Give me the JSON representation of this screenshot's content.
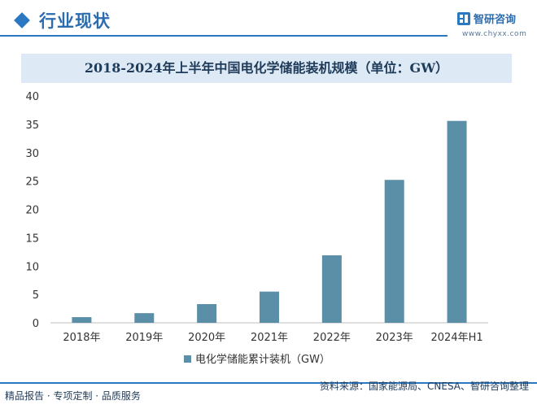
{
  "header": {
    "section_title": "行业现状",
    "brand_name": "智研咨询",
    "brand_url": "www.chyxx.com"
  },
  "footer": {
    "left_text": "精品报告 · 专项定制 · 品质服务",
    "source_text": "资料来源：国家能源局、CNESA、智研咨询整理"
  },
  "colors": {
    "bar": "#5b8fa8",
    "accent": "#2b78c2",
    "title_bg": "#dde9f5"
  },
  "chart_data": {
    "type": "bar",
    "title": "2018-2024年上半年中国电化学储能装机规模（单位：GW）",
    "categories": [
      "2018年",
      "2019年",
      "2020年",
      "2021年",
      "2022年",
      "2023年",
      "2024年H1"
    ],
    "series": [
      {
        "name": "电化学储能累计装机（GW）",
        "values": [
          1.0,
          1.7,
          3.3,
          5.5,
          11.9,
          25.2,
          35.6
        ]
      }
    ],
    "ylim": [
      0,
      40
    ],
    "yticks": [
      0,
      5,
      10,
      15,
      20,
      25,
      30,
      35,
      40
    ],
    "grid": false,
    "legend": "bottom"
  }
}
